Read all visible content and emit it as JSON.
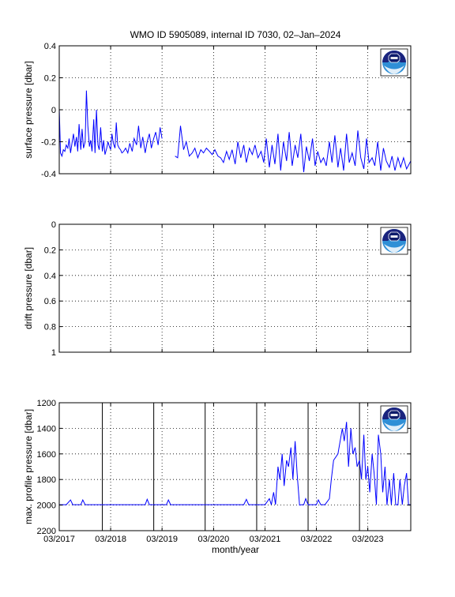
{
  "figure": {
    "title": "WMO ID 5905089, internal ID 7030, 02–Jan–2024",
    "xlabel": "month/year",
    "x_tick_labels": [
      "03/2017",
      "03/2018",
      "03/2019",
      "03/2020",
      "03/2021",
      "03/2022",
      "03/2023"
    ],
    "x_range": [
      "2017-03-01",
      "2023-12-31"
    ],
    "line_color": "#0000ff",
    "logo": "noaa-logo"
  },
  "chart_data": [
    {
      "type": "line",
      "title": "WMO ID 5905089, internal ID 7030, 02–Jan–2024",
      "ylabel": "surface pressure [dbar]",
      "ylim": [
        -0.4,
        0.4
      ],
      "y_ticks": [
        "-0.4",
        "-0.2",
        "0",
        "0.2",
        "0.4"
      ],
      "y_reversed": false,
      "grid": "dotted",
      "legend": "none",
      "series": [
        {
          "x": [
            "2017-03-01",
            "2017-03-10",
            "2017-03-20",
            "2017-03-30",
            "2017-04-10",
            "2017-04-20",
            "2017-05-01",
            "2017-05-10",
            "2017-05-20",
            "2017-06-01",
            "2017-06-10",
            "2017-06-20",
            "2017-07-01",
            "2017-07-10",
            "2017-07-20",
            "2017-08-01",
            "2017-08-10",
            "2017-08-20",
            "2017-09-01",
            "2017-09-10",
            "2017-09-20",
            "2017-10-01",
            "2017-10-10",
            "2017-10-20",
            "2017-11-01",
            "2017-11-10",
            "2017-11-20",
            "2017-12-01",
            "2017-12-10",
            "2017-12-20",
            "2018-01-01",
            "2018-01-10",
            "2018-01-20",
            "2018-02-01",
            "2018-02-10",
            "2018-02-20",
            "2018-03-01",
            "2018-03-10",
            "2018-03-20",
            "2018-04-01",
            "2018-04-10",
            "2018-04-20",
            "2018-05-01",
            "2018-05-10",
            "2018-05-20",
            "2018-06-01",
            "2018-06-15",
            "2018-07-01",
            "2018-07-15",
            "2018-08-01",
            "2018-08-15",
            "2018-09-01",
            "2018-09-15",
            "2018-10-01",
            "2018-10-15",
            "2018-11-01",
            "2018-11-15",
            "2018-12-01",
            "2018-12-15",
            "2019-01-01",
            "2019-01-15",
            "2019-02-01",
            "2019-02-15",
            "2019-03-01"
          ],
          "y": [
            0.01,
            -0.27,
            -0.29,
            -0.25,
            -0.26,
            -0.22,
            -0.24,
            -0.18,
            -0.27,
            -0.2,
            -0.15,
            -0.23,
            -0.17,
            -0.26,
            -0.09,
            -0.25,
            -0.12,
            -0.24,
            -0.2,
            0.12,
            -0.1,
            -0.23,
            -0.19,
            -0.26,
            -0.06,
            -0.27,
            0.0,
            -0.22,
            -0.25,
            -0.11,
            -0.26,
            -0.19,
            -0.28,
            -0.24,
            -0.2,
            -0.23,
            -0.25,
            -0.15,
            -0.21,
            -0.24,
            -0.08,
            -0.22,
            -0.24,
            -0.25,
            -0.27,
            -0.26,
            -0.24,
            -0.27,
            -0.21,
            -0.26,
            -0.18,
            -0.22,
            -0.1,
            -0.24,
            -0.17,
            -0.27,
            -0.2,
            -0.15,
            -0.24,
            -0.18,
            -0.14,
            -0.22,
            -0.11,
            -0.18
          ]
        },
        {
          "x": [
            "2019-06-01",
            "2019-06-20",
            "2019-07-10",
            "2019-08-01",
            "2019-08-20",
            "2019-09-10",
            "2019-10-01",
            "2019-10-20",
            "2019-11-10",
            "2019-12-01",
            "2019-12-20",
            "2020-01-10",
            "2020-02-01",
            "2020-02-20",
            "2020-03-10",
            "2020-04-01",
            "2020-04-20",
            "2020-05-10",
            "2020-06-01",
            "2020-06-20",
            "2020-07-10",
            "2020-08-01",
            "2020-08-20",
            "2020-09-10",
            "2020-10-01",
            "2020-10-20",
            "2020-11-10",
            "2020-12-01",
            "2020-12-20",
            "2021-01-10",
            "2021-02-01",
            "2021-02-20",
            "2021-03-10",
            "2021-04-01",
            "2021-04-20",
            "2021-05-10",
            "2021-06-01",
            "2021-06-20",
            "2021-07-10",
            "2021-08-01",
            "2021-08-20",
            "2021-09-10",
            "2021-10-01",
            "2021-10-20",
            "2021-11-10",
            "2021-12-01",
            "2021-12-20",
            "2022-01-10",
            "2022-02-01",
            "2022-02-20",
            "2022-03-10",
            "2022-04-01",
            "2022-04-20",
            "2022-05-10",
            "2022-06-01",
            "2022-06-20",
            "2022-07-10",
            "2022-08-01",
            "2022-08-20",
            "2022-09-10",
            "2022-10-01",
            "2022-10-20",
            "2022-11-10",
            "2022-12-01",
            "2022-12-20",
            "2023-01-10",
            "2023-02-01",
            "2023-02-20",
            "2023-03-10",
            "2023-04-01",
            "2023-04-20",
            "2023-05-10",
            "2023-06-01",
            "2023-06-20",
            "2023-07-10",
            "2023-08-01",
            "2023-08-20",
            "2023-09-10",
            "2023-10-01",
            "2023-10-20",
            "2023-11-10",
            "2023-12-01",
            "2023-12-31"
          ],
          "y": [
            -0.29,
            -0.3,
            -0.1,
            -0.25,
            -0.2,
            -0.29,
            -0.27,
            -0.24,
            -0.3,
            -0.25,
            -0.27,
            -0.24,
            -0.26,
            -0.28,
            -0.25,
            -0.29,
            -0.3,
            -0.33,
            -0.26,
            -0.31,
            -0.25,
            -0.34,
            -0.2,
            -0.3,
            -0.22,
            -0.33,
            -0.24,
            -0.28,
            -0.22,
            -0.3,
            -0.26,
            -0.33,
            -0.18,
            -0.36,
            -0.22,
            -0.34,
            -0.15,
            -0.38,
            -0.2,
            -0.32,
            -0.14,
            -0.35,
            -0.22,
            -0.3,
            -0.15,
            -0.39,
            -0.23,
            -0.32,
            -0.18,
            -0.35,
            -0.26,
            -0.33,
            -0.3,
            -0.35,
            -0.2,
            -0.33,
            -0.16,
            -0.36,
            -0.24,
            -0.38,
            -0.15,
            -0.33,
            -0.27,
            -0.35,
            -0.13,
            -0.3,
            -0.37,
            -0.18,
            -0.33,
            -0.3,
            -0.35,
            -0.2,
            -0.38,
            -0.24,
            -0.32,
            -0.36,
            -0.29,
            -0.38,
            -0.3,
            -0.36,
            -0.3,
            -0.37,
            -0.32
          ]
        }
      ]
    },
    {
      "type": "line",
      "ylabel": "drift pressure [dbar]",
      "ylim": [
        0,
        1
      ],
      "y_ticks": [
        "0",
        "0.2",
        "0.4",
        "0.6",
        "0.8",
        "1"
      ],
      "y_reversed": true,
      "grid": "dotted",
      "legend": "none",
      "series": []
    },
    {
      "type": "line",
      "ylabel": "max. profile pressure [dbar]",
      "ylim": [
        1200,
        2200
      ],
      "y_ticks": [
        "1200",
        "1400",
        "1600",
        "1800",
        "2000",
        "2200"
      ],
      "y_reversed": true,
      "grid": "dotted",
      "legend": "none",
      "vertical_lines": [
        "2018-01-01",
        "2019-01-01",
        "2020-01-01",
        "2021-01-01",
        "2022-01-01",
        "2023-01-01"
      ],
      "series": [
        {
          "x": [
            "2017-03-01",
            "2017-04-20",
            "2017-05-20",
            "2017-06-05",
            "2017-06-20",
            "2017-08-01",
            "2017-08-15",
            "2017-09-01",
            "2017-10-01",
            "2017-11-01",
            "2017-12-01",
            "2018-01-01",
            "2018-02-01",
            "2018-03-01",
            "2018-04-01",
            "2018-05-01",
            "2018-06-01",
            "2018-07-01",
            "2018-08-01",
            "2018-09-01",
            "2018-10-01",
            "2018-11-01",
            "2018-11-15",
            "2018-12-01",
            "2019-01-01",
            "2019-02-01",
            "2019-03-01",
            "2019-04-01",
            "2019-04-15",
            "2019-05-01",
            "2019-06-01",
            "2019-07-01",
            "2019-08-01",
            "2019-09-01",
            "2019-10-01",
            "2019-11-01",
            "2019-12-01",
            "2020-01-01",
            "2020-02-01",
            "2020-03-01",
            "2020-04-01",
            "2020-05-01",
            "2020-06-01",
            "2020-07-01",
            "2020-08-01",
            "2020-09-01",
            "2020-10-01",
            "2020-10-20",
            "2020-11-05",
            "2020-12-01",
            "2021-01-01",
            "2021-02-01",
            "2021-03-01",
            "2021-04-01",
            "2021-04-15",
            "2021-05-01",
            "2021-05-15",
            "2021-06-01",
            "2021-06-15",
            "2021-07-01",
            "2021-07-15",
            "2021-08-01",
            "2021-08-15",
            "2021-09-01",
            "2021-09-15",
            "2021-10-01",
            "2021-10-15",
            "2021-11-01",
            "2021-11-15",
            "2021-12-01",
            "2021-12-15",
            "2022-01-01",
            "2022-02-01",
            "2022-03-01",
            "2022-03-15",
            "2022-04-01",
            "2022-05-01",
            "2022-06-01",
            "2022-06-15",
            "2022-07-01",
            "2022-08-01",
            "2022-09-01",
            "2022-09-15",
            "2022-10-01",
            "2022-10-15",
            "2022-11-01",
            "2022-11-15",
            "2022-12-01",
            "2022-12-15",
            "2023-01-01",
            "2023-01-15",
            "2023-02-01",
            "2023-02-15",
            "2023-03-01",
            "2023-03-15",
            "2023-04-01",
            "2023-04-15",
            "2023-05-01",
            "2023-05-15",
            "2023-06-01",
            "2023-06-15",
            "2023-07-01",
            "2023-07-15",
            "2023-08-01",
            "2023-08-15",
            "2023-09-01",
            "2023-09-15",
            "2023-10-01",
            "2023-10-15",
            "2023-11-01",
            "2023-11-15",
            "2023-12-01",
            "2023-12-15",
            "2023-12-31"
          ],
          "y": [
            1997,
            1997,
            1960,
            1997,
            1997,
            1997,
            1960,
            1997,
            1997,
            1997,
            1997,
            1997,
            1997,
            1997,
            1997,
            1997,
            1997,
            1997,
            1997,
            1997,
            1997,
            1997,
            1955,
            1997,
            1997,
            1997,
            1997,
            1997,
            1960,
            1997,
            1997,
            1997,
            1997,
            1997,
            1997,
            1997,
            1997,
            1997,
            1997,
            1997,
            1997,
            1997,
            1997,
            1997,
            1997,
            1997,
            1997,
            1955,
            1997,
            1997,
            1997,
            1997,
            1997,
            1950,
            1997,
            1900,
            1997,
            1700,
            1800,
            1600,
            1850,
            1650,
            1700,
            1550,
            1800,
            1500,
            1750,
            2000,
            1997,
            1997,
            1950,
            1997,
            1997,
            1997,
            1960,
            1997,
            1997,
            1950,
            1800,
            1650,
            1600,
            1400,
            1500,
            1350,
            1700,
            1400,
            1600,
            1550,
            1700,
            1650,
            1800,
            1450,
            1800,
            1700,
            1900,
            1600,
            1750,
            1997,
            1450,
            1600,
            1900,
            1700,
            2000,
            1800,
            1997,
            1750,
            1997,
            1997,
            1800,
            1997,
            1850,
            1750,
            1997,
            1997
          ]
        }
      ]
    }
  ]
}
